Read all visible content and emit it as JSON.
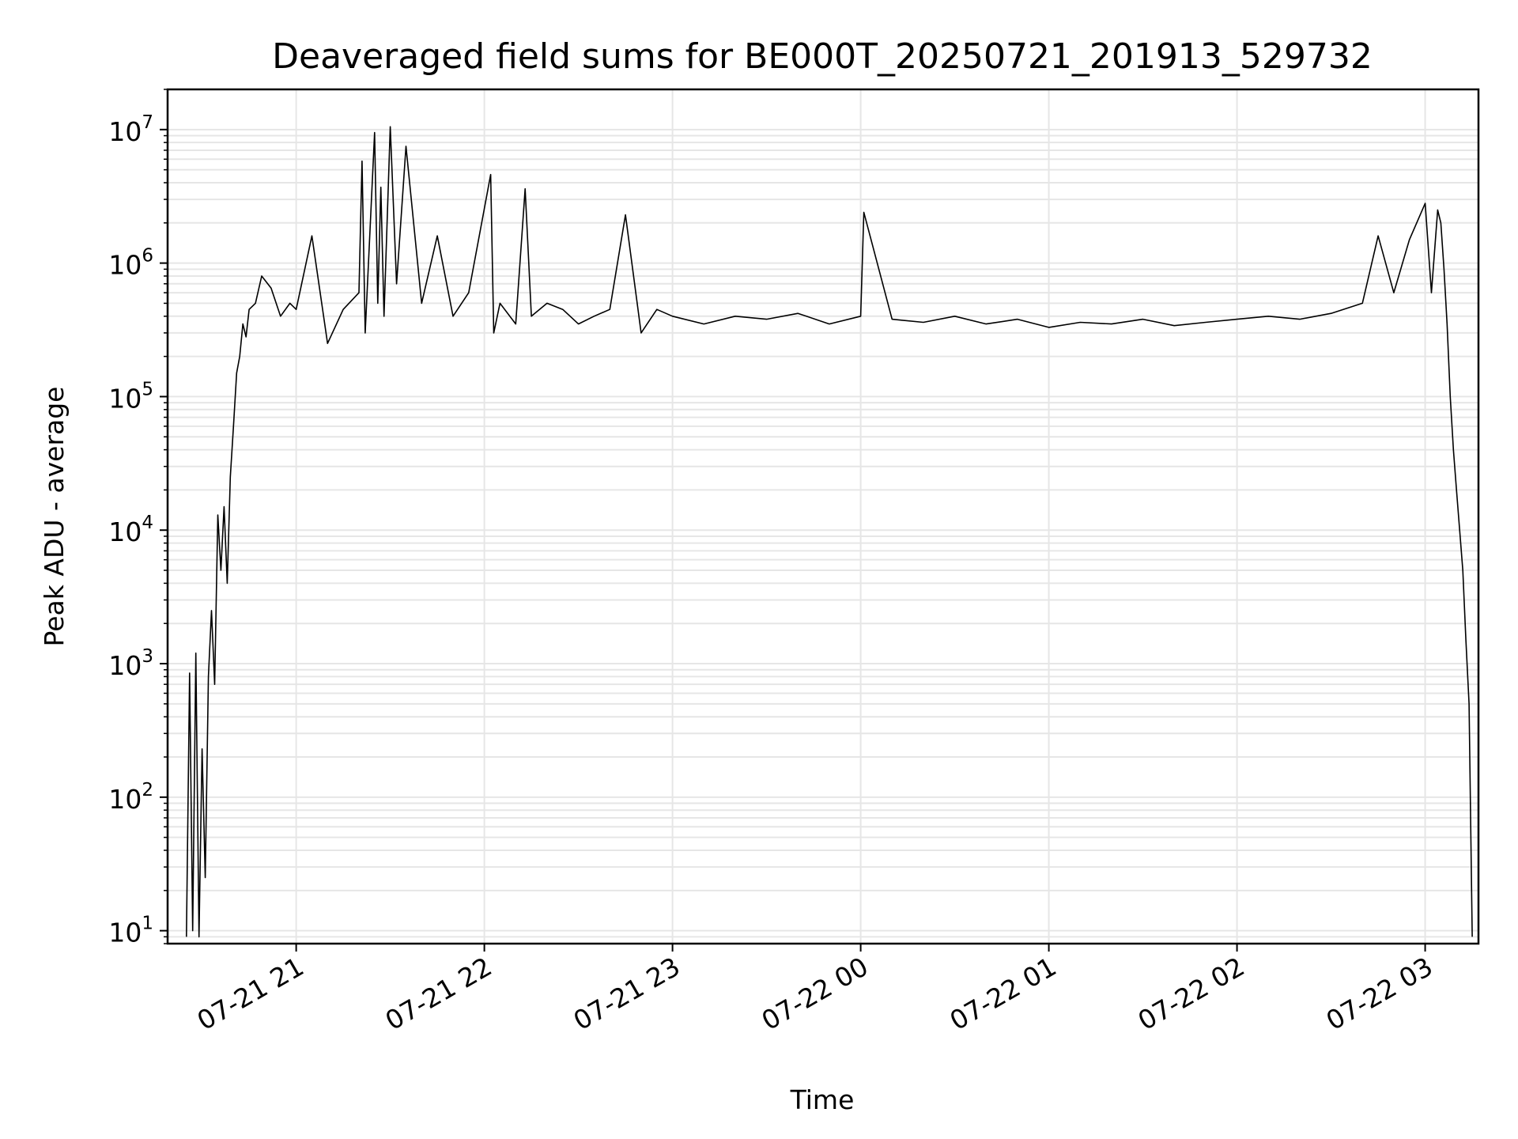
{
  "chart_data": {
    "type": "line",
    "title": "Deaveraged field sums for BE000T_20250721_201913_529732",
    "xlabel": "Time",
    "ylabel": "Peak ADU - average",
    "yscale": "log",
    "ylim": [
      8,
      20000000
    ],
    "xlim": [
      "2025-07-21 20:19",
      "2025-07-22 03:17"
    ],
    "grid": true,
    "line_color": "#000000",
    "grid_color": "#e6e6e6",
    "x_ticks": [
      {
        "label": "07-21 21",
        "value": "2025-07-21 21:00"
      },
      {
        "label": "07-21 22",
        "value": "2025-07-21 22:00"
      },
      {
        "label": "07-21 23",
        "value": "2025-07-21 23:00"
      },
      {
        "label": "07-22 00",
        "value": "2025-07-22 00:00"
      },
      {
        "label": "07-22 01",
        "value": "2025-07-22 01:00"
      },
      {
        "label": "07-22 02",
        "value": "2025-07-22 02:00"
      },
      {
        "label": "07-22 03",
        "value": "2025-07-22 03:00"
      }
    ],
    "y_ticks": [
      {
        "mantissa": "10",
        "exp": "1",
        "value": 10
      },
      {
        "mantissa": "10",
        "exp": "2",
        "value": 100
      },
      {
        "mantissa": "10",
        "exp": "3",
        "value": 1000
      },
      {
        "mantissa": "10",
        "exp": "4",
        "value": 10000
      },
      {
        "mantissa": "10",
        "exp": "5",
        "value": 100000
      },
      {
        "mantissa": "10",
        "exp": "6",
        "value": 1000000
      },
      {
        "mantissa": "10",
        "exp": "7",
        "value": 10000000
      }
    ],
    "series": [
      {
        "x": [
          "2025-07-21 20:25",
          "2025-07-21 20:26",
          "2025-07-21 20:27",
          "2025-07-21 20:28",
          "2025-07-21 20:29",
          "2025-07-21 20:30",
          "2025-07-21 20:31",
          "2025-07-21 20:32",
          "2025-07-21 20:33",
          "2025-07-21 20:34",
          "2025-07-21 20:35",
          "2025-07-21 20:36",
          "2025-07-21 20:37",
          "2025-07-21 20:38",
          "2025-07-21 20:39",
          "2025-07-21 20:40",
          "2025-07-21 20:41",
          "2025-07-21 20:42",
          "2025-07-21 20:43",
          "2025-07-21 20:44",
          "2025-07-21 20:45",
          "2025-07-21 20:47",
          "2025-07-21 20:49",
          "2025-07-21 20:52",
          "2025-07-21 20:55",
          "2025-07-21 20:58",
          "2025-07-21 21:00",
          "2025-07-21 21:05",
          "2025-07-21 21:10",
          "2025-07-21 21:15",
          "2025-07-21 21:20",
          "2025-07-21 21:21",
          "2025-07-21 21:22",
          "2025-07-21 21:25",
          "2025-07-21 21:26",
          "2025-07-21 21:27",
          "2025-07-21 21:28",
          "2025-07-21 21:30",
          "2025-07-21 21:32",
          "2025-07-21 21:35",
          "2025-07-21 21:40",
          "2025-07-21 21:45",
          "2025-07-21 21:50",
          "2025-07-21 21:55",
          "2025-07-21 22:02",
          "2025-07-21 22:03",
          "2025-07-21 22:05",
          "2025-07-21 22:10",
          "2025-07-21 22:13",
          "2025-07-21 22:15",
          "2025-07-21 22:20",
          "2025-07-21 22:25",
          "2025-07-21 22:30",
          "2025-07-21 22:35",
          "2025-07-21 22:40",
          "2025-07-21 22:45",
          "2025-07-21 22:50",
          "2025-07-21 22:55",
          "2025-07-21 23:00",
          "2025-07-21 23:10",
          "2025-07-21 23:20",
          "2025-07-21 23:30",
          "2025-07-21 23:40",
          "2025-07-21 23:50",
          "2025-07-22 00:00",
          "2025-07-22 00:01",
          "2025-07-22 00:10",
          "2025-07-22 00:20",
          "2025-07-22 00:30",
          "2025-07-22 00:40",
          "2025-07-22 00:50",
          "2025-07-22 01:00",
          "2025-07-22 01:10",
          "2025-07-22 01:20",
          "2025-07-22 01:30",
          "2025-07-22 01:40",
          "2025-07-22 01:50",
          "2025-07-22 02:00",
          "2025-07-22 02:10",
          "2025-07-22 02:20",
          "2025-07-22 02:30",
          "2025-07-22 02:40",
          "2025-07-22 02:45",
          "2025-07-22 02:50",
          "2025-07-22 02:55",
          "2025-07-22 03:00",
          "2025-07-22 03:02",
          "2025-07-22 03:04",
          "2025-07-22 03:05",
          "2025-07-22 03:06",
          "2025-07-22 03:07",
          "2025-07-22 03:08",
          "2025-07-22 03:09",
          "2025-07-22 03:10",
          "2025-07-22 03:11",
          "2025-07-22 03:12",
          "2025-07-22 03:13",
          "2025-07-22 03:14",
          "2025-07-22 03:15"
        ],
        "y": [
          9,
          850,
          10,
          1200,
          9,
          230,
          25,
          800,
          2500,
          700,
          13000,
          5000,
          15000,
          4000,
          25000,
          60000,
          150000,
          200000,
          350000,
          280000,
          450000,
          500000,
          800000,
          650000,
          400000,
          500000,
          450000,
          1600000,
          250000,
          450000,
          600000,
          5800000,
          300000,
          9500000,
          500000,
          3700000,
          400000,
          10500000,
          700000,
          7500000,
          500000,
          1600000,
          400000,
          600000,
          4600000,
          300000,
          500000,
          350000,
          3600000,
          400000,
          500000,
          450000,
          350000,
          400000,
          450000,
          2300000,
          300000,
          450000,
          400000,
          350000,
          400000,
          380000,
          420000,
          350000,
          400000,
          2400000,
          380000,
          360000,
          400000,
          350000,
          380000,
          330000,
          360000,
          350000,
          380000,
          340000,
          360000,
          380000,
          400000,
          380000,
          420000,
          500000,
          1600000,
          600000,
          1500000,
          2800000,
          600000,
          2500000,
          2000000,
          900000,
          350000,
          100000,
          40000,
          20000,
          10000,
          5000,
          1500,
          500,
          9
        ]
      }
    ]
  }
}
